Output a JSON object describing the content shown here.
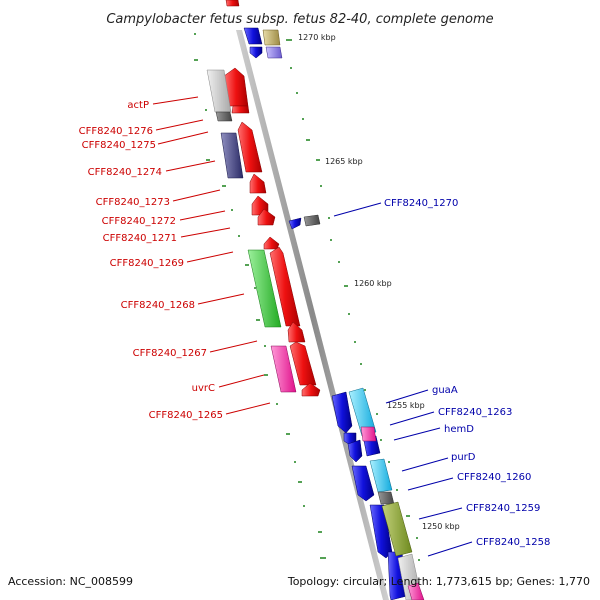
{
  "title": "Campylobacter fetus subsp. fetus 82-40, complete genome",
  "footer": {
    "accession": "Accession: NC_008599",
    "stats": "Topology: circular; Length: 1,773,615 bp; Genes: 1,770"
  },
  "scale_labels": [
    "1270 kbp",
    "1265 kbp",
    "1260 kbp",
    "1255 kbp",
    "1250 kbp"
  ],
  "left_labels": [
    "actP",
    "CFF8240_1276",
    "CFF8240_1275",
    "CFF8240_1274",
    "CFF8240_1273",
    "CFF8240_1272",
    "CFF8240_1271",
    "CFF8240_1269",
    "CFF8240_1268",
    "CFF8240_1267",
    "uvrC",
    "CFF8240_1265"
  ],
  "right_labels": [
    "CFF8240_1270",
    "guaA",
    "CFF8240_1263",
    "hemD",
    "purD",
    "CFF8240_1260",
    "CFF8240_1259",
    "CFF8240_1258"
  ],
  "colors": {
    "reverse_strand_genes": "#ee1111",
    "forward_strand_genes": "#1111dd",
    "left_label_text": "#cc0000",
    "right_label_text": "#0000aa",
    "scale_ticks": "#2a8a2a",
    "backbone": "#8c8c8c"
  }
}
